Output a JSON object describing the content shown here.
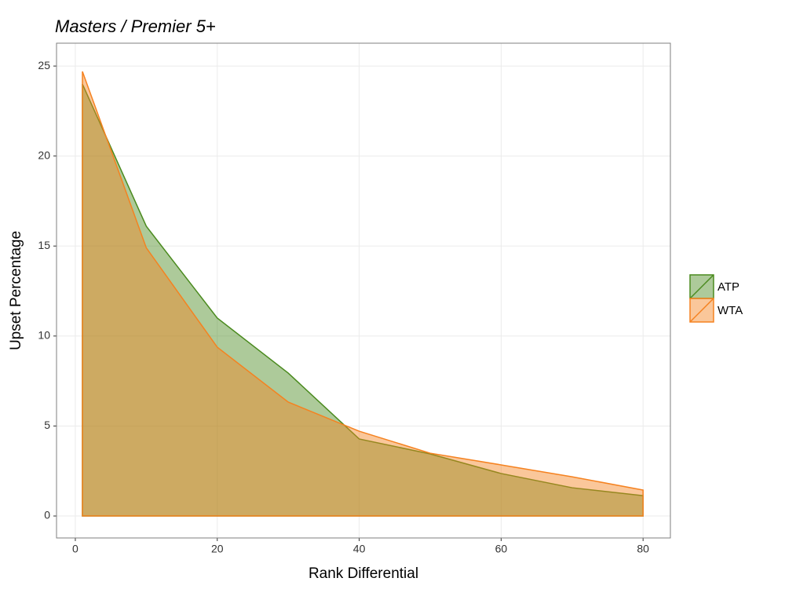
{
  "chart_data": {
    "type": "area",
    "title": "Masters / Premier 5+",
    "x_label": "Rank Differential",
    "y_label": "Upset Percentage",
    "x": [
      1,
      10,
      20,
      30,
      40,
      50,
      60,
      70,
      80
    ],
    "series": [
      {
        "name": "ATP",
        "color": "#4a8a1e",
        "values": [
          24.0,
          16.1,
          11.0,
          7.94,
          4.28,
          3.45,
          2.36,
          1.57,
          1.13
        ]
      },
      {
        "name": "WTA",
        "color": "#f58220",
        "values": [
          24.7,
          14.9,
          9.38,
          6.33,
          4.71,
          3.49,
          2.84,
          2.18,
          1.44
        ]
      }
    ],
    "xlim": [
      -2.65,
      83.85
    ],
    "ylim": [
      -1.22,
      26.27
    ],
    "xticks": [
      0,
      20,
      40,
      60,
      80
    ],
    "yticks": [
      0,
      5,
      10,
      15,
      20,
      25
    ],
    "grid": true,
    "legend": "right"
  }
}
